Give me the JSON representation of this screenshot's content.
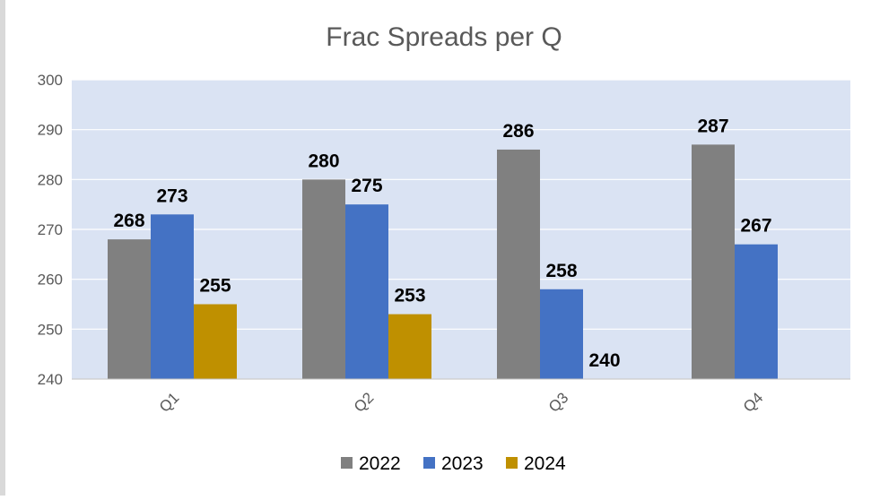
{
  "chart_data": {
    "type": "bar",
    "title": "Frac Spreads per Q",
    "xlabel": "",
    "ylabel": "",
    "categories": [
      "Q1",
      "Q2",
      "Q3",
      "Q4"
    ],
    "series": [
      {
        "name": "2022",
        "color": "#808080",
        "values": [
          268,
          280,
          286,
          287
        ]
      },
      {
        "name": "2023",
        "color": "#4472c4",
        "values": [
          273,
          275,
          258,
          267
        ]
      },
      {
        "name": "2024",
        "color": "#bf9000",
        "values": [
          255,
          253,
          240,
          null
        ]
      }
    ],
    "ylim": [
      240,
      300
    ],
    "yticks": [
      240,
      250,
      260,
      270,
      280,
      290,
      300
    ],
    "grid": true,
    "plot_background": "#dae3f3",
    "legend": "bottom"
  }
}
